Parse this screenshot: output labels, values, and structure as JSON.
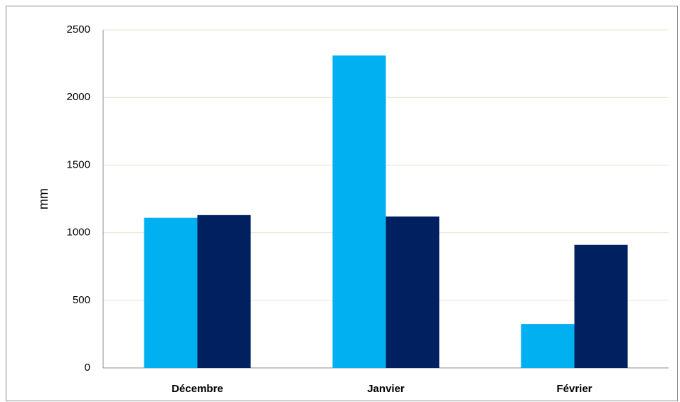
{
  "chart_data": {
    "type": "bar",
    "y_label": "mm",
    "categories": [
      "Décembre",
      "Janvier",
      "Février"
    ],
    "series": [
      {
        "color": "#00b0f0",
        "values": [
          1110,
          2310,
          325
        ]
      },
      {
        "color": "#002060",
        "values": [
          1130,
          1120,
          910
        ]
      }
    ],
    "ylim": [
      0,
      2500
    ],
    "yticks": [
      0,
      500,
      1000,
      1500,
      2000,
      2500
    ],
    "grid": true
  }
}
